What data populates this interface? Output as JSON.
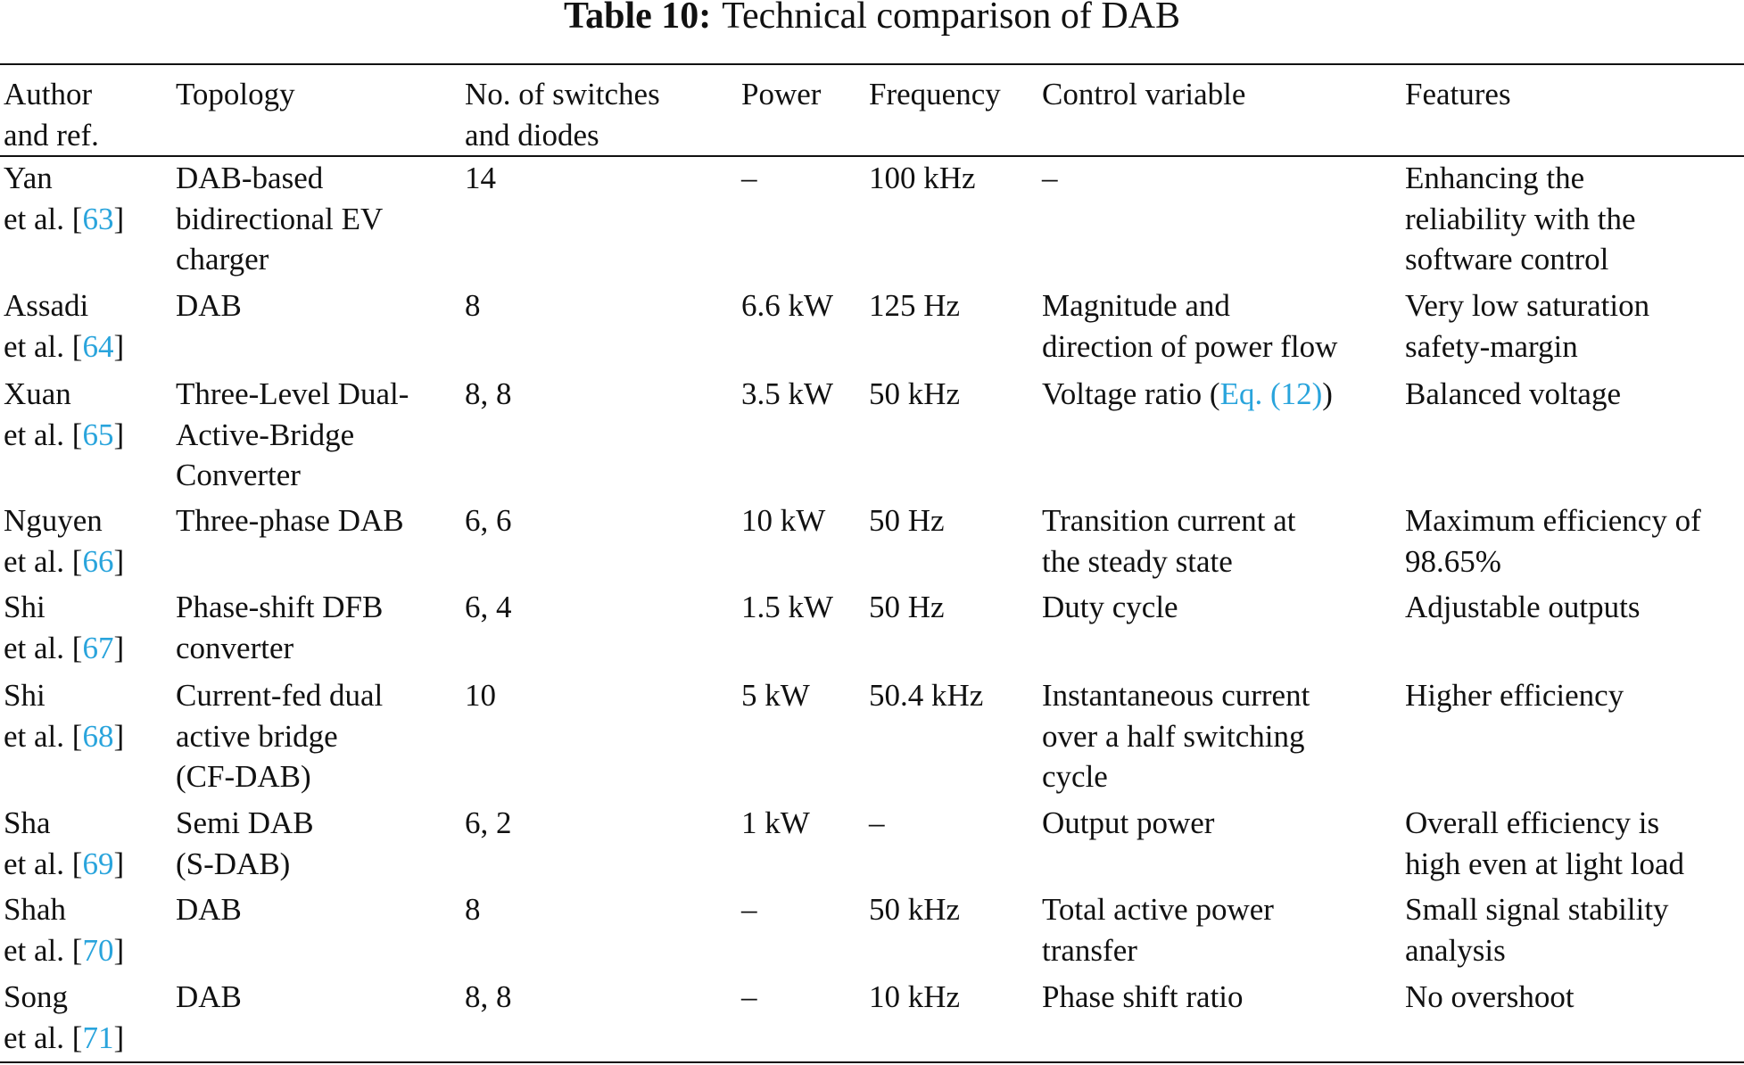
{
  "table": {
    "label": "Table 10:",
    "caption": "Technical comparison of DAB",
    "headers": [
      "Author\nand ref.",
      "Topology",
      "No. of switches\nand diodes",
      "Power",
      "Frequency",
      "Control variable",
      "Features"
    ],
    "link_color": "#29a4dc",
    "rows": [
      {
        "author": "Yan",
        "ref": "63",
        "topology": "DAB-based\nbidirectional EV\ncharger",
        "switches": "14",
        "power": "–",
        "frequency": "100 kHz",
        "control": "–",
        "control_link": "",
        "control_tail": "",
        "features": "Enhancing the\nreliability with the\nsoftware control"
      },
      {
        "author": "Assadi",
        "ref": "64",
        "topology": "DAB",
        "switches": "8",
        "power": "6.6 kW",
        "frequency": "125 Hz",
        "control": "Magnitude and\ndirection of power flow",
        "control_link": "",
        "control_tail": "",
        "features": "Very low saturation\nsafety-margin"
      },
      {
        "author": "Xuan",
        "ref": "65",
        "topology": "Three-Level Dual-\nActive-Bridge\nConverter",
        "switches": "8, 8",
        "power": "3.5 kW",
        "frequency": "50 kHz",
        "control": "Voltage ratio (",
        "control_link": "Eq. (12)",
        "control_tail": ")",
        "features": "Balanced voltage"
      },
      {
        "author": "Nguyen",
        "ref": "66",
        "topology": "Three-phase DAB",
        "switches": "6, 6",
        "power": "10 kW",
        "frequency": "50 Hz",
        "control": "Transition current at\nthe steady state",
        "control_link": "",
        "control_tail": "",
        "features": "Maximum efficiency of\n98.65%"
      },
      {
        "author": "Shi",
        "ref": "67",
        "topology": "Phase-shift DFB\nconverter",
        "switches": "6, 4",
        "power": "1.5 kW",
        "frequency": "50 Hz",
        "control": "Duty cycle",
        "control_link": "",
        "control_tail": "",
        "features": "Adjustable outputs"
      },
      {
        "author": "Shi",
        "ref": "68",
        "topology": "Current-fed dual\nactive bridge\n(CF-DAB)",
        "switches": "10",
        "power": "5 kW",
        "frequency": "50.4 kHz",
        "control": "Instantaneous current\nover a half switching\ncycle",
        "control_link": "",
        "control_tail": "",
        "features": "Higher efficiency"
      },
      {
        "author": "Sha",
        "ref": "69",
        "topology": "Semi DAB\n(S-DAB)",
        "switches": "6, 2",
        "power": "1 kW",
        "frequency": "–",
        "control": "Output power",
        "control_link": "",
        "control_tail": "",
        "features": "Overall efficiency is\nhigh even at light load"
      },
      {
        "author": "Shah",
        "ref": "70",
        "topology": "DAB",
        "switches": "8",
        "power": "–",
        "frequency": "50 kHz",
        "control": "Total active power\ntransfer",
        "control_link": "",
        "control_tail": "",
        "features": "Small signal stability\nanalysis"
      },
      {
        "author": "Song",
        "ref": "71",
        "topology": "DAB",
        "switches": "8, 8",
        "power": "–",
        "frequency": "10 kHz",
        "control": "Phase shift ratio",
        "control_link": "",
        "control_tail": "",
        "features": "No overshoot"
      }
    ]
  }
}
